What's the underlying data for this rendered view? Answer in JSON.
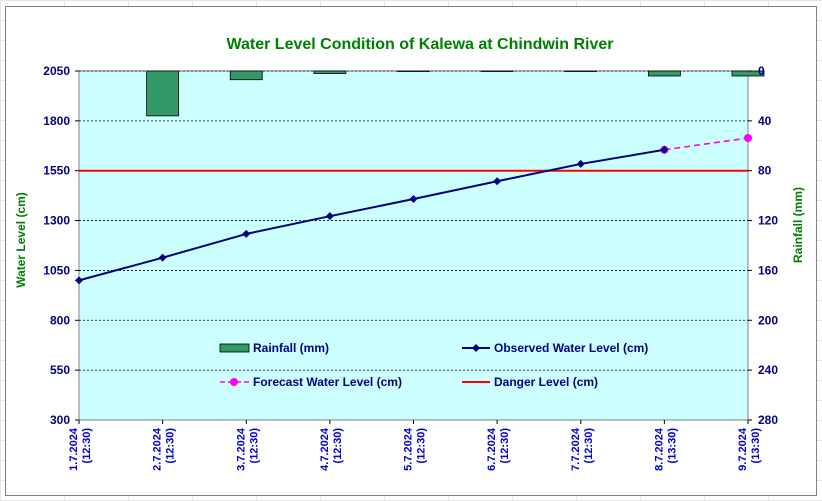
{
  "chart_data": {
    "type": "line",
    "title": "Water Level Condition of Kalewa at Chindwin River",
    "ylabel": "Water Level (cm)",
    "y2label": "Rainfall (mm)",
    "ylim": [
      300,
      2050
    ],
    "y2lim": [
      0,
      280
    ],
    "y2_inverted": true,
    "yticks": [
      2050,
      1800,
      1550,
      1300,
      1050,
      800,
      550,
      300
    ],
    "y2ticks": [
      0,
      40,
      80,
      120,
      160,
      200,
      240,
      280
    ],
    "categories": [
      [
        "1.7.2024",
        "(12:30)"
      ],
      [
        "2.7.2024",
        "(12:30)"
      ],
      [
        "3.7.2024",
        "(12:30)"
      ],
      [
        "4.7.2024",
        "(12:30)"
      ],
      [
        "5.7.2024",
        "(12:30)"
      ],
      [
        "6.7.2024",
        "(12:30)"
      ],
      [
        "7.7.2024",
        "(12:30)"
      ],
      [
        "8.7.2024",
        "(13:30)"
      ],
      [
        "9.7.2024",
        "(13:30)"
      ]
    ],
    "series": [
      {
        "name": "Rainfall (mm)",
        "kind": "bar",
        "axis": "y2",
        "color": "#339966",
        "values": [
          null,
          36,
          7,
          2,
          0,
          0,
          0,
          4,
          4
        ]
      },
      {
        "name": "Observed Water Level (cm)",
        "kind": "line",
        "axis": "y",
        "color": "#000080",
        "values": [
          1000,
          1114,
          1233,
          1322,
          1408,
          1497,
          1584,
          1655,
          null
        ]
      },
      {
        "name": "Forecast Water Level (cm)",
        "kind": "line-dashed",
        "axis": "y",
        "color": "#ff00ff",
        "values": [
          null,
          null,
          null,
          null,
          null,
          null,
          null,
          1655,
          1714
        ]
      },
      {
        "name": "Danger Level (cm)",
        "kind": "hline",
        "axis": "y",
        "color": "#ff0000",
        "value": 1550
      }
    ],
    "grid": true,
    "plot_background": "#ccffff",
    "legend_position": "inside-bottom"
  }
}
